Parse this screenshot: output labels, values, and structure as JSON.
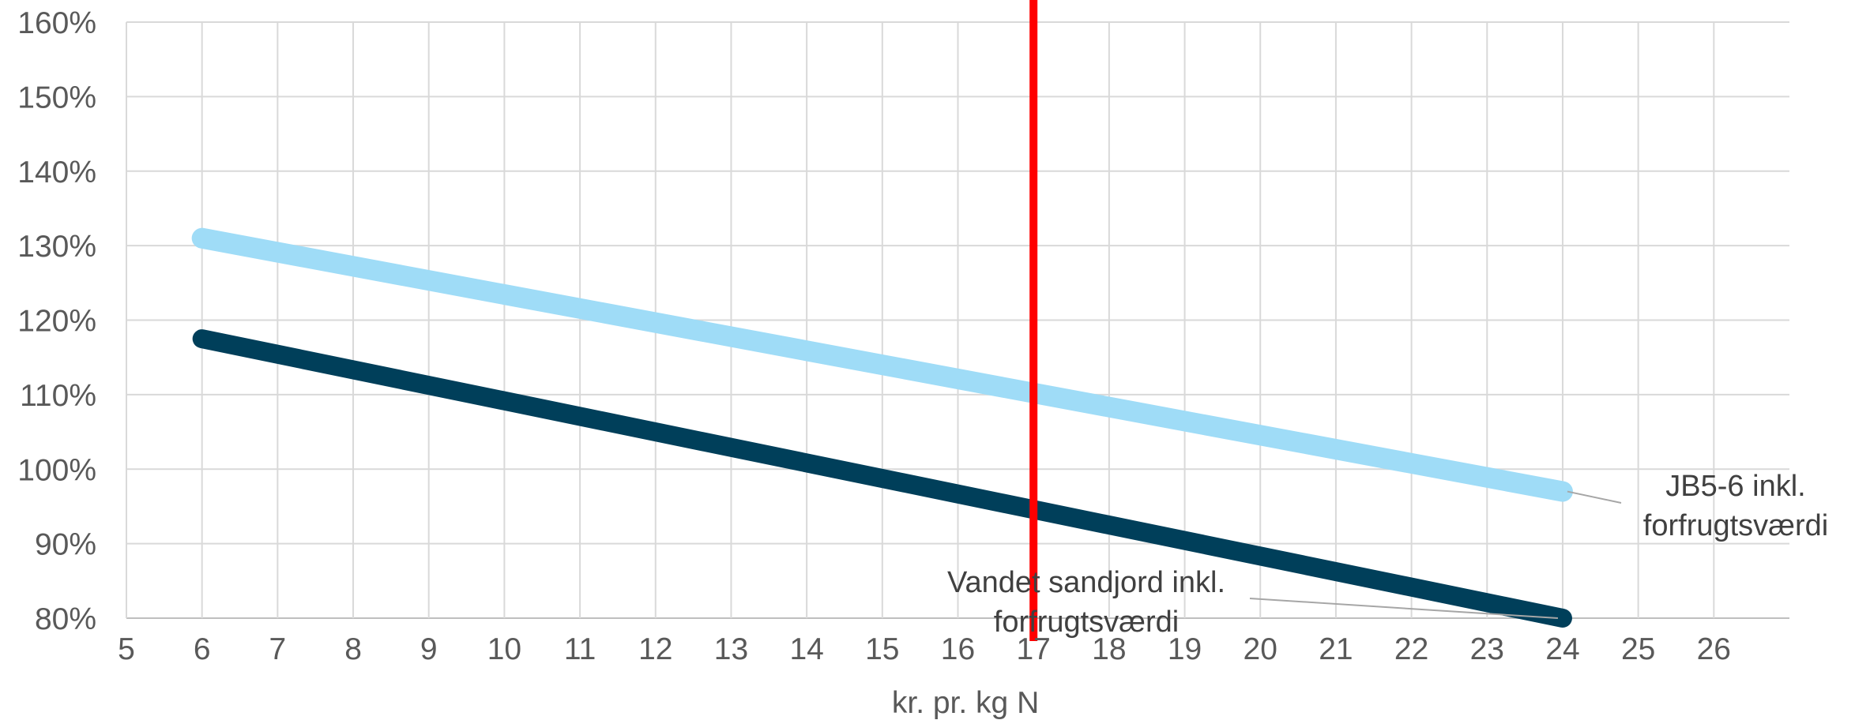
{
  "chart_data": {
    "type": "line",
    "title": "",
    "xlabel": "kr. pr. kg N",
    "ylabel": "",
    "xlim": [
      5,
      27
    ],
    "ylim": [
      0.8,
      1.6
    ],
    "xticks": [
      5,
      6,
      7,
      8,
      9,
      10,
      11,
      12,
      13,
      14,
      15,
      16,
      17,
      18,
      19,
      20,
      21,
      22,
      23,
      24,
      25,
      26
    ],
    "yticks": [
      0.8,
      0.9,
      1.0,
      1.1,
      1.2,
      1.3,
      1.4,
      1.5,
      1.6
    ],
    "ytick_format": "percent",
    "grid": true,
    "legend": "none (series labels at line ends)",
    "reference_line": {
      "x": 17,
      "color": "#FF0000"
    },
    "series": [
      {
        "name": "JB5-6 inkl. forfrugtsværdi",
        "label_lines": [
          "JB5-6 inkl.",
          "forfrugtsværdi"
        ],
        "color": "#9FDCF7",
        "x": [
          6,
          24
        ],
        "y": [
          1.31,
          0.97
        ]
      },
      {
        "name": "Vandet sandjord inkl. forfrugtsværdi",
        "label_lines": [
          "Vandet sandjord inkl.",
          "forfrugtsværdi"
        ],
        "color": "#003F5A",
        "x": [
          6,
          24
        ],
        "y": [
          1.175,
          0.8
        ]
      }
    ]
  }
}
